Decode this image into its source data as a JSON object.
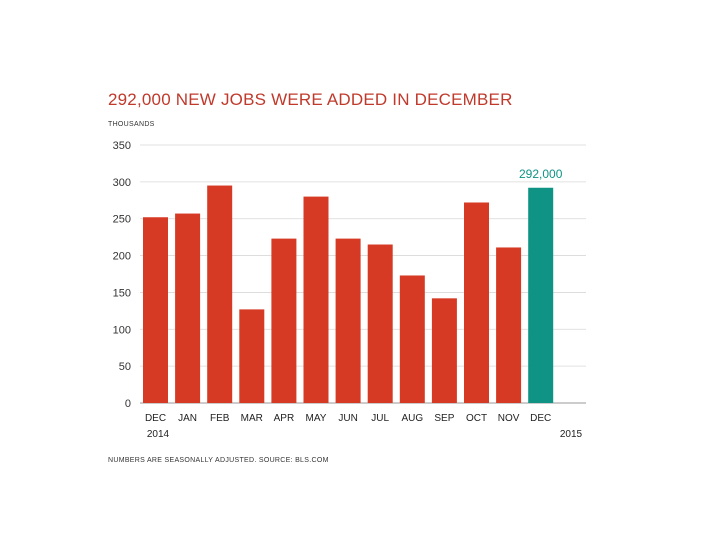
{
  "chart_data": {
    "type": "bar",
    "title": "292,000 NEW JOBS WERE ADDED IN DECEMBER",
    "ylabel": "THOUSANDS",
    "note": "NUMBERS ARE SEASONALLY ADJUSTED. SOURCE: BLS.COM",
    "categories": [
      "DEC",
      "JAN",
      "FEB",
      "MAR",
      "APR",
      "MAY",
      "JUN",
      "JUL",
      "AUG",
      "SEP",
      "OCT",
      "NOV",
      "DEC"
    ],
    "values": [
      252,
      257,
      295,
      127,
      223,
      280,
      223,
      215,
      173,
      142,
      272,
      211,
      292
    ],
    "year_labels": {
      "start": "2014",
      "end": "2015"
    },
    "highlight_index": 12,
    "highlight_label": "292,000",
    "yticks": [
      0,
      50,
      100,
      150,
      200,
      250,
      300,
      350
    ],
    "ylim": [
      0,
      350
    ],
    "grid": true,
    "colors": {
      "bar": "#d63a24",
      "highlight": "#0e9384",
      "highlight_text": "#0e9384",
      "title": "#c0392b",
      "grid": "#d8d8d8"
    }
  }
}
